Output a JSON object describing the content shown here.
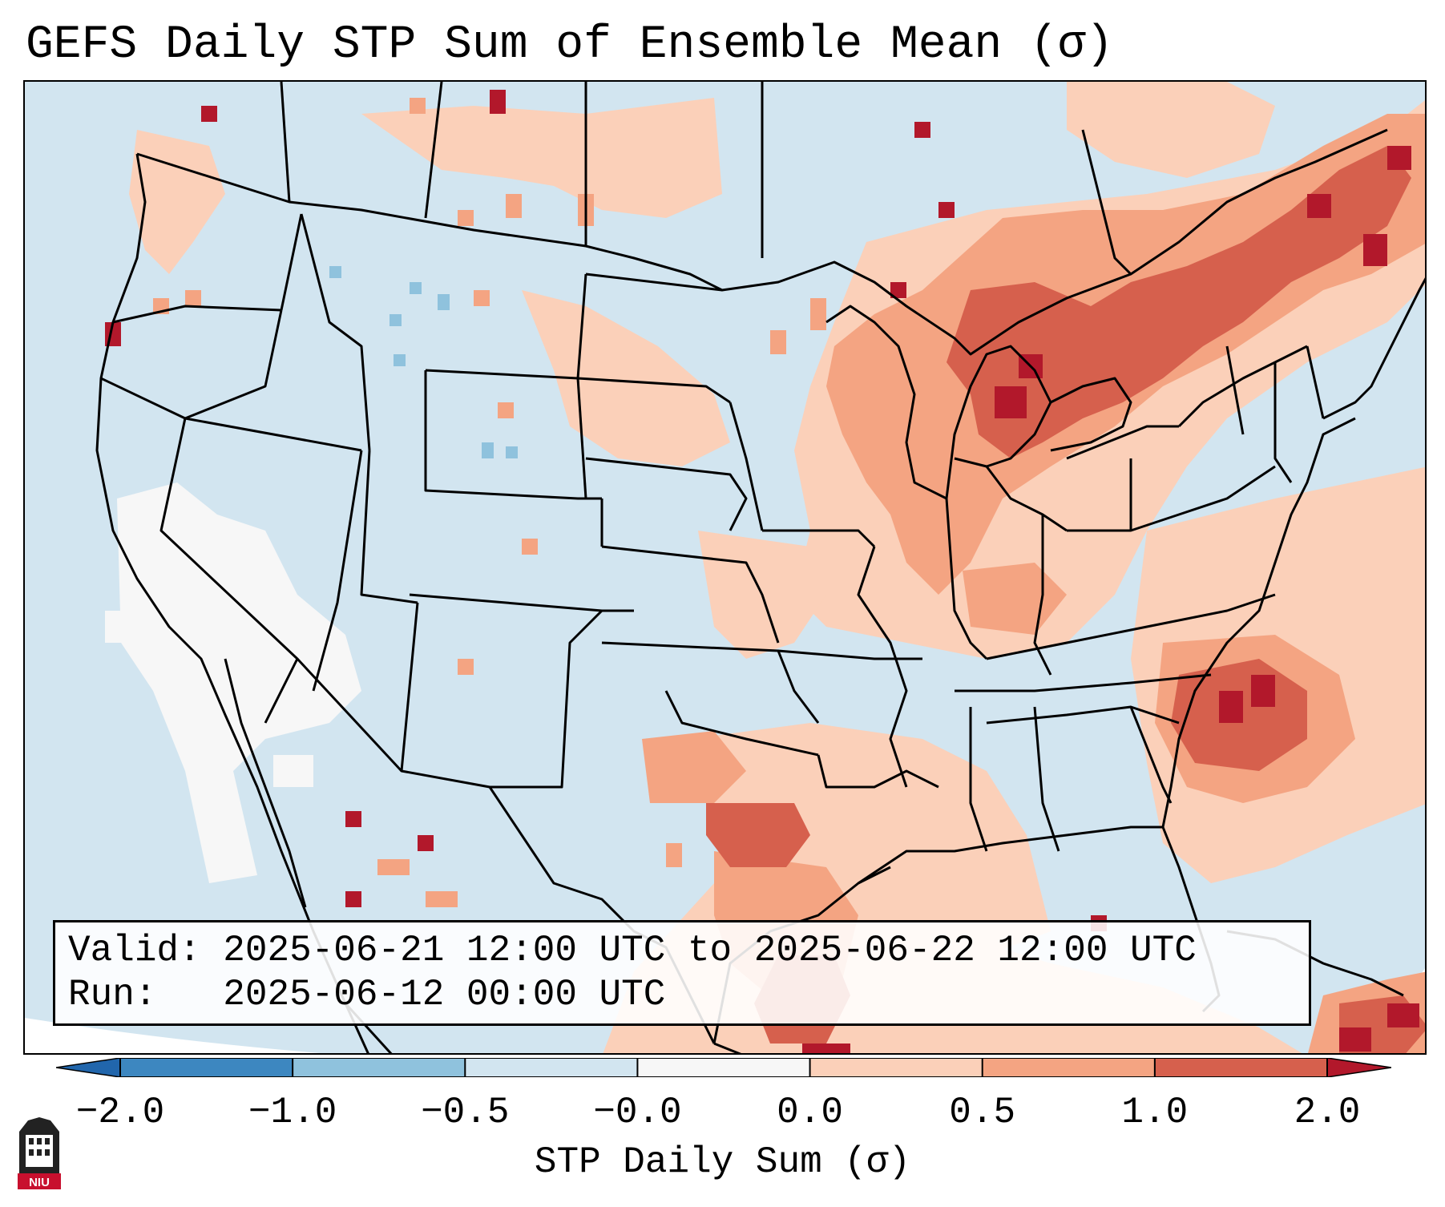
{
  "title": "GEFS Daily STP Sum of Ensemble Mean (σ)",
  "info": {
    "valid_label": "Valid:",
    "valid_value": "2025-06-21 12:00 UTC to 2025-06-22 12:00 UTC",
    "run_label": "Run:",
    "run_value": "2025-06-12 00:00 UTC"
  },
  "colorbar": {
    "label": "STP Daily Sum (σ)",
    "ticks": [
      "−2.0",
      "−1.0",
      "−0.5",
      "−0.0",
      "0.0",
      "0.5",
      "1.0",
      "2.0"
    ],
    "colors": [
      "#3d87c0",
      "#8fc2dd",
      "#d2e5f0",
      "#f7f7f7",
      "#fbd0b9",
      "#f4a482",
      "#d6604d",
      "#b2182b"
    ]
  },
  "logo_text": "NIU",
  "colors": {
    "ocean": "#d2e5f0",
    "strong": "#b2182b",
    "moderate": "#d6604d",
    "light": "#f4a482",
    "faint": "#fbd0b9",
    "neutral": "#f7f7f7",
    "cool": "#8fc2dd"
  }
}
